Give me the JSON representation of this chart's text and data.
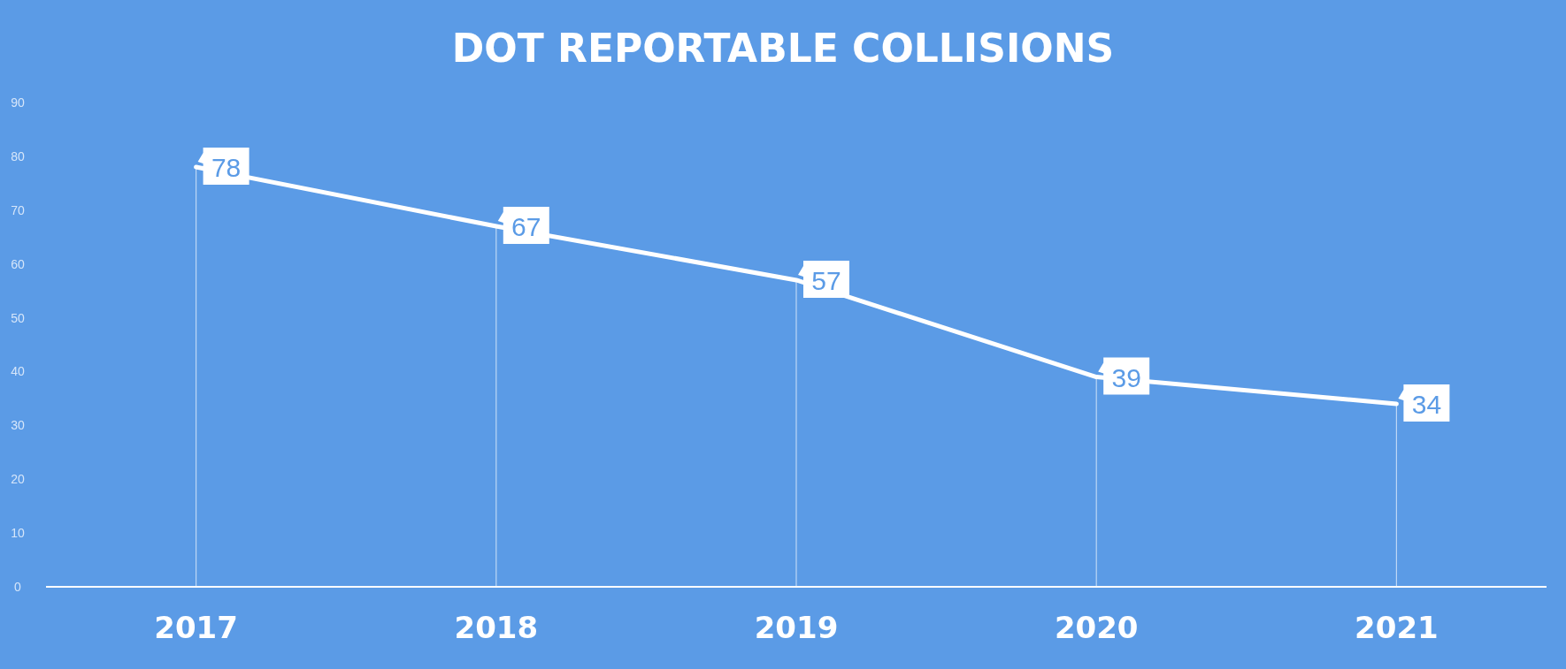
{
  "chart_data": {
    "type": "line",
    "title": "DOT REPORTABLE COLLISIONS",
    "categories": [
      "2017",
      "2018",
      "2019",
      "2020",
      "2021"
    ],
    "series": [
      {
        "color": "#ffffff",
        "values": [
          78,
          67,
          57,
          39,
          34
        ]
      }
    ],
    "ylim": [
      0,
      90
    ],
    "yticks": [
      0,
      10,
      20,
      30,
      40,
      50,
      60,
      70,
      80,
      90
    ],
    "grid": "x",
    "marker": "none",
    "line_style": "solid",
    "data_labels": true
  }
}
